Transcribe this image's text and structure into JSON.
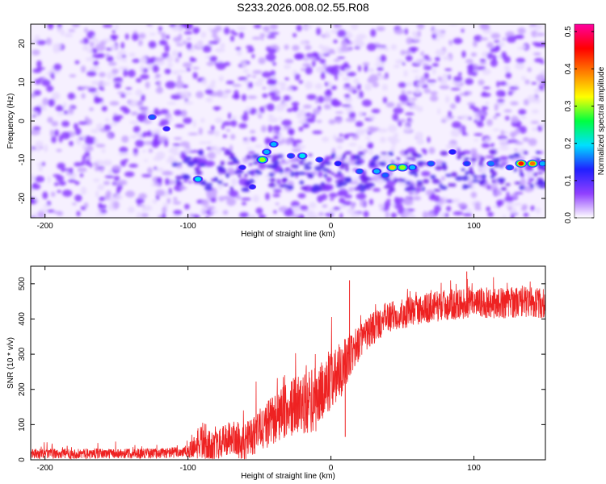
{
  "title": "S233.2026.008.02.55.R08",
  "chart_data": [
    {
      "type": "heatmap",
      "xlabel": "Height of straight line (km)",
      "ylabel": "Frequency (Hz)",
      "xlim": [
        -210,
        150
      ],
      "ylim": [
        -25,
        25
      ],
      "xticks": [
        -200,
        -100,
        0,
        100
      ],
      "yticks": [
        -20,
        -10,
        0,
        10,
        20
      ],
      "colorbar": {
        "label": "Normalized spectral amplitude",
        "range": [
          0.0,
          0.52
        ],
        "ticks": [
          "0.0",
          "0.1",
          "0.2",
          "0.3",
          "0.4",
          "0.5"
        ],
        "colors": [
          "#ffffff",
          "#9040ff",
          "#2020ff",
          "#00e0ff",
          "#00ff40",
          "#ffff00",
          "#ff8000",
          "#ff0000",
          "#ff00a0"
        ]
      },
      "background": "speckled low-amplitude noise (purple) over full area",
      "ridge": {
        "description": "band of higher amplitude near -10 to -15 Hz",
        "points": [
          {
            "x": -125,
            "y": 1,
            "v": 0.15
          },
          {
            "x": -115,
            "y": -2,
            "v": 0.12
          },
          {
            "x": -93,
            "y": -15,
            "v": 0.2
          },
          {
            "x": -62,
            "y": -12,
            "v": 0.12
          },
          {
            "x": -55,
            "y": -17,
            "v": 0.12
          },
          {
            "x": -48,
            "y": -10,
            "v": 0.3
          },
          {
            "x": -45,
            "y": -8,
            "v": 0.18
          },
          {
            "x": -40,
            "y": -6,
            "v": 0.18
          },
          {
            "x": -28,
            "y": -9,
            "v": 0.14
          },
          {
            "x": -20,
            "y": -9,
            "v": 0.2
          },
          {
            "x": -8,
            "y": -10,
            "v": 0.14
          },
          {
            "x": 5,
            "y": -11,
            "v": 0.13
          },
          {
            "x": 20,
            "y": -13,
            "v": 0.15
          },
          {
            "x": 32,
            "y": -13,
            "v": 0.18
          },
          {
            "x": 38,
            "y": -14,
            "v": 0.15
          },
          {
            "x": 43,
            "y": -12,
            "v": 0.35
          },
          {
            "x": 50,
            "y": -12,
            "v": 0.3
          },
          {
            "x": 57,
            "y": -12,
            "v": 0.18
          },
          {
            "x": 70,
            "y": -11,
            "v": 0.15
          },
          {
            "x": 85,
            "y": -8,
            "v": 0.13
          },
          {
            "x": 95,
            "y": -11,
            "v": 0.14
          },
          {
            "x": 112,
            "y": -11,
            "v": 0.16
          },
          {
            "x": 125,
            "y": -12,
            "v": 0.15
          },
          {
            "x": 133,
            "y": -11,
            "v": 0.45
          },
          {
            "x": 141,
            "y": -11,
            "v": 0.4
          },
          {
            "x": 148,
            "y": -11,
            "v": 0.18
          }
        ]
      }
    },
    {
      "type": "line",
      "xlabel": "Height of straight line (km)",
      "ylabel": "SNR (10 * v/v)",
      "xlim": [
        -210,
        150
      ],
      "ylim": [
        0,
        550
      ],
      "xticks": [
        -200,
        -100,
        0,
        100
      ],
      "yticks": [
        0,
        100,
        200,
        300,
        400,
        500
      ],
      "color": "#ee2222",
      "envelope": {
        "x": [
          -210,
          -120,
          -100,
          -90,
          -80,
          -70,
          -60,
          -50,
          -40,
          -30,
          -20,
          -10,
          0,
          10,
          20,
          30,
          40,
          50,
          60,
          80,
          100,
          120,
          140,
          150
        ],
        "y": [
          18,
          20,
          25,
          60,
          40,
          70,
          55,
          90,
          120,
          150,
          170,
          180,
          240,
          280,
          340,
          380,
          410,
          420,
          430,
          445,
          450,
          450,
          455,
          445
        ],
        "spread": [
          18,
          18,
          22,
          70,
          60,
          60,
          70,
          80,
          90,
          100,
          110,
          120,
          110,
          100,
          60,
          60,
          55,
          55,
          55,
          55,
          55,
          55,
          55,
          55
        ]
      },
      "spikes": [
        {
          "x": 13,
          "y": 510
        },
        {
          "x": 10,
          "y": 65
        },
        {
          "x": 150,
          "y": 540
        },
        {
          "x": 95,
          "y": 535
        }
      ]
    }
  ]
}
